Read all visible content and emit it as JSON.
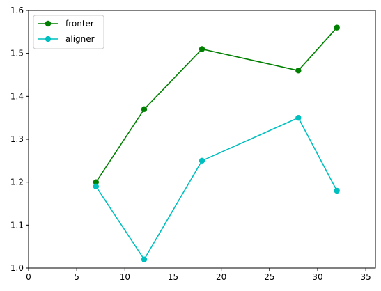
{
  "chart_data": {
    "type": "line",
    "title": "",
    "xlabel": "",
    "ylabel": "",
    "xlim": [
      0,
      36
    ],
    "ylim": [
      1.0,
      1.6
    ],
    "xticks": [
      0,
      5,
      10,
      15,
      20,
      25,
      30,
      35
    ],
    "yticks": [
      1.0,
      1.1,
      1.2,
      1.3,
      1.4,
      1.5,
      1.6
    ],
    "grid": false,
    "legend_position": "top-left",
    "series": [
      {
        "name": "fronter",
        "color": "#008000",
        "marker": "circle",
        "x": [
          7,
          12,
          18,
          28,
          32
        ],
        "y": [
          1.2,
          1.37,
          1.51,
          1.46,
          1.56
        ]
      },
      {
        "name": "aligner",
        "color": "#00BFBF",
        "marker": "circle",
        "x": [
          7,
          12,
          18,
          28,
          32
        ],
        "y": [
          1.19,
          1.02,
          1.25,
          1.35,
          1.18
        ]
      }
    ]
  }
}
